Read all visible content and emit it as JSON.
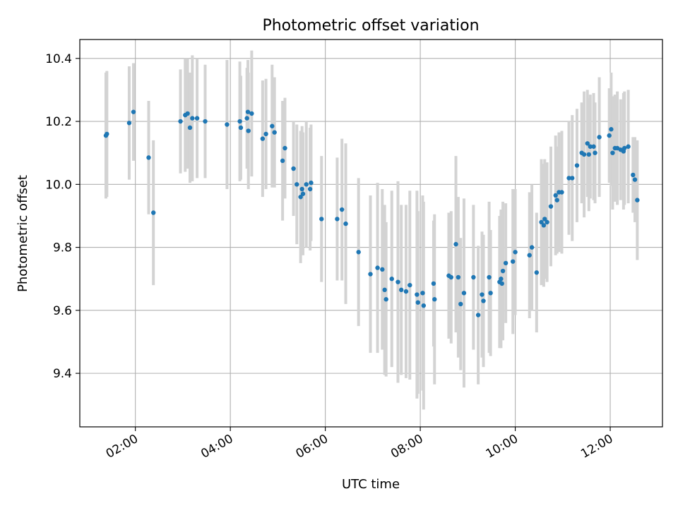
{
  "chart_data": {
    "type": "scatter",
    "title": "Photometric offset variation",
    "xlabel": "UTC time",
    "ylabel": "Photometric offset",
    "xlim": [
      0.83,
      13.1
    ],
    "ylim": [
      9.23,
      10.46
    ],
    "grid": true,
    "legend": "none",
    "x_ticks": [
      {
        "value": 2,
        "label": "02:00"
      },
      {
        "value": 4,
        "label": "04:00"
      },
      {
        "value": 6,
        "label": "06:00"
      },
      {
        "value": 8,
        "label": "08:00"
      },
      {
        "value": 10,
        "label": "10:00"
      },
      {
        "value": 12,
        "label": "12:00"
      }
    ],
    "y_ticks": [
      {
        "value": 9.4,
        "label": "9.4"
      },
      {
        "value": 9.6,
        "label": "9.6"
      },
      {
        "value": 9.8,
        "label": "9.8"
      },
      {
        "value": 10.0,
        "label": "10.0"
      },
      {
        "value": 10.2,
        "label": "10.2"
      },
      {
        "value": 10.4,
        "label": "10.4"
      }
    ],
    "colors": {
      "points": "#1f77b4",
      "errorbars": "#d3d3d3",
      "grid": "#b0b0b0",
      "axes": "#000000"
    },
    "series": [
      {
        "name": "offset",
        "x": [
          1.4,
          1.38,
          1.87,
          1.96,
          2.28,
          2.38,
          2.95,
          3.05,
          3.1,
          3.15,
          3.2,
          3.3,
          3.47,
          3.93,
          4.2,
          4.22,
          4.37,
          4.35,
          4.38,
          4.45,
          4.68,
          4.75,
          4.88,
          4.93,
          5.1,
          5.15,
          5.33,
          5.4,
          5.48,
          5.51,
          5.53,
          5.6,
          5.68,
          5.7,
          5.92,
          6.25,
          6.35,
          6.43,
          6.7,
          6.95,
          7.1,
          7.2,
          7.25,
          7.28,
          7.4,
          7.53,
          7.6,
          7.7,
          7.78,
          7.93,
          7.95,
          8.05,
          8.07,
          8.28,
          8.3,
          8.6,
          8.65,
          8.75,
          8.8,
          8.85,
          8.92,
          9.12,
          9.22,
          9.3,
          9.33,
          9.45,
          9.48,
          9.67,
          9.7,
          9.72,
          9.74,
          9.8,
          9.95,
          10.0,
          10.3,
          10.35,
          10.45,
          10.55,
          10.6,
          10.62,
          10.67,
          10.75,
          10.85,
          10.88,
          10.92,
          10.98,
          11.13,
          11.2,
          11.3,
          11.4,
          11.45,
          11.52,
          11.55,
          11.58,
          11.65,
          11.68,
          11.77,
          11.98,
          12.02,
          12.05,
          12.1,
          12.15,
          12.22,
          12.28,
          12.3,
          12.38,
          12.48,
          12.52,
          12.57
        ],
        "y": [
          10.16,
          10.155,
          10.195,
          10.23,
          10.085,
          9.91,
          10.2,
          10.22,
          10.225,
          10.18,
          10.21,
          10.21,
          10.2,
          10.19,
          10.2,
          10.18,
          10.23,
          10.21,
          10.17,
          10.225,
          10.145,
          10.16,
          10.185,
          10.165,
          10.075,
          10.115,
          10.05,
          10.0,
          9.96,
          9.985,
          9.97,
          10.0,
          9.985,
          10.005,
          9.89,
          9.89,
          9.92,
          9.875,
          9.785,
          9.715,
          9.735,
          9.73,
          9.665,
          9.635,
          9.7,
          9.69,
          9.665,
          9.66,
          9.68,
          9.65,
          9.625,
          9.655,
          9.615,
          9.685,
          9.635,
          9.71,
          9.705,
          9.81,
          9.705,
          9.62,
          9.655,
          9.705,
          9.585,
          9.65,
          9.63,
          9.705,
          9.655,
          9.69,
          9.7,
          9.685,
          9.725,
          9.75,
          9.755,
          9.785,
          9.775,
          9.8,
          9.72,
          9.88,
          9.87,
          9.89,
          9.88,
          9.93,
          9.965,
          9.95,
          9.975,
          9.975,
          10.02,
          10.02,
          10.06,
          10.1,
          10.095,
          10.13,
          10.095,
          10.12,
          10.12,
          10.1,
          10.15,
          10.155,
          10.175,
          10.1,
          10.115,
          10.115,
          10.11,
          10.105,
          10.115,
          10.12,
          10.03,
          10.015,
          9.95
        ],
        "err": [
          0.2,
          0.2,
          0.18,
          0.155,
          0.18,
          0.23,
          0.165,
          0.18,
          0.175,
          0.175,
          0.2,
          0.19,
          0.18,
          0.205,
          0.19,
          0.165,
          0.165,
          0.16,
          0.185,
          0.2,
          0.185,
          0.175,
          0.195,
          0.175,
          0.19,
          0.16,
          0.15,
          0.19,
          0.21,
          0.2,
          0.195,
          0.2,
          0.195,
          0.185,
          0.2,
          0.195,
          0.225,
          0.255,
          0.235,
          0.25,
          0.27,
          0.255,
          0.27,
          0.245,
          0.28,
          0.32,
          0.27,
          0.275,
          0.3,
          0.33,
          0.29,
          0.31,
          0.33,
          0.2,
          0.27,
          0.2,
          0.21,
          0.28,
          0.255,
          0.21,
          0.3,
          0.23,
          0.22,
          0.2,
          0.21,
          0.24,
          0.2,
          0.21,
          0.22,
          0.18,
          0.22,
          0.19,
          0.23,
          0.2,
          0.2,
          0.2,
          0.19,
          0.2,
          0.195,
          0.19,
          0.19,
          0.19,
          0.19,
          0.17,
          0.19,
          0.195,
          0.18,
          0.2,
          0.18,
          0.16,
          0.2,
          0.17,
          0.18,
          0.165,
          0.17,
          0.16,
          0.19,
          0.15,
          0.18,
          0.18,
          0.17,
          0.18,
          0.16,
          0.185,
          0.18,
          0.18,
          0.12,
          0.135,
          0.19
        ]
      }
    ]
  }
}
